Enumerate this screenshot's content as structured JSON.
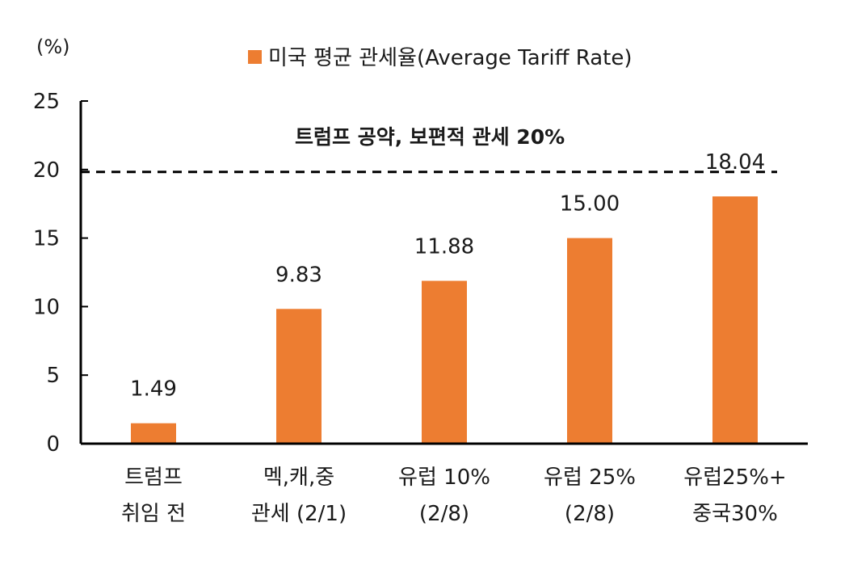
{
  "chart_data": {
    "type": "bar",
    "unit_label": "(%)",
    "categories": [
      [
        "트럼프",
        "취임 전"
      ],
      [
        "멕,캐,중",
        "관세 (2/1)"
      ],
      [
        "유럽 10%",
        "(2/8)"
      ],
      [
        "유럽 25%",
        "(2/8)"
      ],
      [
        "유럽25%+",
        "중국30%"
      ]
    ],
    "series": [
      {
        "name": "미국 평균 관세율(Average Tariff Rate)",
        "values": [
          1.49,
          9.83,
          11.88,
          15.0,
          18.04
        ]
      }
    ],
    "value_labels": [
      "1.49",
      "9.83",
      "11.88",
      "15.00",
      "18.04"
    ],
    "ylim": [
      0,
      25
    ],
    "yticks": [
      0,
      5,
      10,
      15,
      20,
      25
    ],
    "grid": false,
    "legend_position": "top",
    "reference_line": {
      "value": 20,
      "style": "dashed",
      "label": "트럼프 공약, 보편적 관세 20%"
    },
    "colors": {
      "bar": "#ED7D31",
      "axis": "#000000",
      "text": "#1a1a1a"
    }
  }
}
